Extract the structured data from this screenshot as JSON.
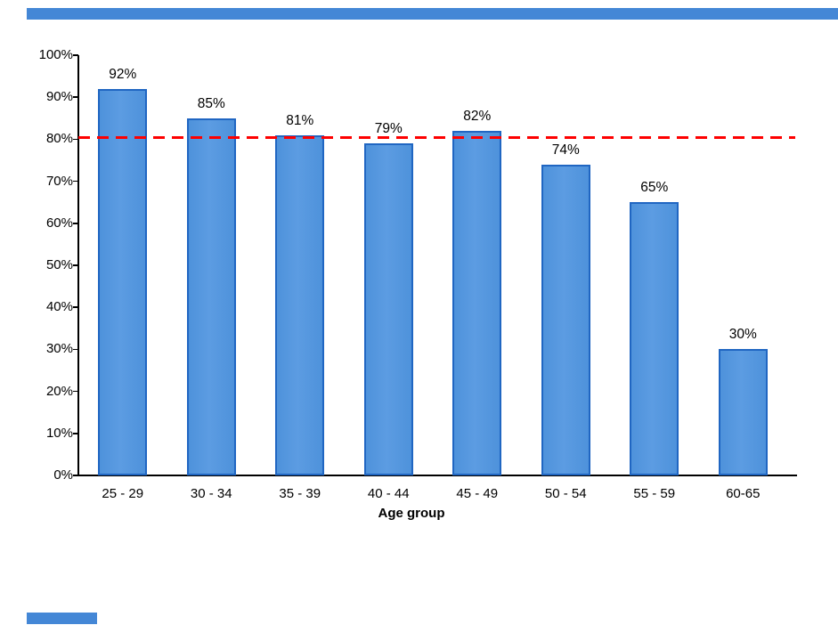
{
  "chart_data": {
    "type": "bar",
    "title": "",
    "xlabel": "Age group",
    "ylabel": "",
    "categories": [
      "25 - 29",
      "30 - 34",
      "35 - 39",
      "40 - 44",
      "45 - 49",
      "50 - 54",
      "55 - 59",
      "60-65"
    ],
    "values": [
      92,
      85,
      81,
      79,
      82,
      74,
      65,
      30
    ],
    "value_labels": [
      "92%",
      "85%",
      "81%",
      "79%",
      "82%",
      "74%",
      "65%",
      "30%"
    ],
    "ylim": [
      0,
      100
    ],
    "y_tick_values": [
      0,
      10,
      20,
      30,
      40,
      50,
      60,
      70,
      80,
      90,
      100
    ],
    "y_tick_labels": [
      "0%",
      "10%",
      "20%",
      "30%",
      "40%",
      "50%",
      "60%",
      "70%",
      "80%",
      "90%",
      "100%"
    ],
    "grid": false,
    "legend_position": "none",
    "bar_fill_color": "#4E92DB",
    "bar_border_color": "#2066C2",
    "axis_color": "#000000",
    "reference_line": {
      "value": 80.4,
      "color": "#FE0000",
      "style": "dashed"
    }
  },
  "decorations": {
    "top_highlight_color": "#4487D6",
    "bottom_highlight_color": "#4487D6"
  }
}
